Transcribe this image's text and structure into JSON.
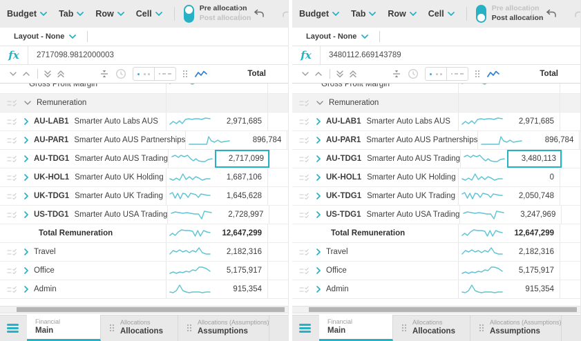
{
  "colors": {
    "accent_teal": "#26b1c5",
    "sparkline": "#5fc4d5",
    "chart_icon_blue": "#2e7fd2",
    "selected_cell_border": "#26b1c5",
    "toolbar_bg": "#ececec",
    "group_row_bg": "#f2f2f2"
  },
  "sparklines": {
    "gross": "1,8 8,5 15,7 22,4 29,6 36,9 43,5 50,7 57,5 63,7",
    "lab": "1,13 6,9 11,12 16,8 20,12 25,6 30,5 35,6 40,5 45,5 50,6 56,4 63,5",
    "par": "1,15 8,15 15,15 22,15 28,15 31,4 35,10 40,12 45,9 50,12 56,11 63,10",
    "tdg": "1,6 6,4 11,7 15,4 20,6 25,4 30,9 34,12 38,9 42,12 47,13 52,13 57,10 63,9",
    "hol": "1,11 6,13 11,10 16,13 21,4 26,12 31,8 36,12 41,8 46,10 51,13 57,11 63,11",
    "uktdg": "1,6 5,4 9,12 13,5 17,13 21,5 25,6 29,11 33,5 37,6 41,7 45,11 49,6 54,7 59,8 63,8",
    "ustdg": "1,7 7,5 13,6 19,7 25,6 31,7 37,8 43,8 48,15 52,4 57,5 63,6",
    "total": "1,12 5,9 9,12 14,7 19,4 25,5 31,5 36,6 40,13 44,5 48,13 53,5 58,7 63,8",
    "travel": "1,12 6,7 11,9 16,6 21,9 26,7 31,10 36,7 41,9 46,3 51,10 57,12 63,12",
    "office": "1,13 6,11 11,13 16,11 21,12 26,10 31,11 36,8 41,9 46,4 51,4 57,6 63,10",
    "admin": "1,13 6,14 11,11 16,3 21,11 26,13 31,14 36,13 41,13 46,13 51,14 57,13 63,13"
  },
  "panels": [
    {
      "toolbar": {
        "menus": [
          "Budget",
          "Tab",
          "Row",
          "Cell"
        ],
        "toggle": {
          "options": [
            "Pre allocation",
            "Post allocation"
          ],
          "active": 0
        }
      },
      "layout_bar": {
        "label": "Layout - None"
      },
      "formula": {
        "icon": "fx",
        "value": "2717098.9812000003"
      },
      "grid_header": {
        "total_label": "Total"
      },
      "rows": [
        {
          "type": "clipped",
          "label": "Gross Profit Margin",
          "spark": "gross",
          "value": ""
        },
        {
          "type": "group",
          "label": "Remuneration"
        },
        {
          "type": "leaf",
          "code": "AU-LAB1",
          "name": "Smarter Auto Labs AUS",
          "spark": "lab",
          "value": "2,971,685"
        },
        {
          "type": "leaf",
          "code": "AU-PAR1",
          "name": "Smarter Auto AUS Partnerships",
          "spark": "par",
          "value": "896,784"
        },
        {
          "type": "leaf",
          "code": "AU-TDG1",
          "name": "Smarter Auto AUS Trading",
          "spark": "tdg",
          "value": "2,717,099",
          "selected": true
        },
        {
          "type": "leaf",
          "code": "UK-HOL1",
          "name": "Smarter Auto UK Holding",
          "spark": "hol",
          "value": "1,687,106"
        },
        {
          "type": "leaf",
          "code": "UK-TDG1",
          "name": "Smarter Auto UK Trading",
          "spark": "uktdg",
          "value": "1,645,628"
        },
        {
          "type": "leaf",
          "code": "US-TDG1",
          "name": "Smarter Auto USA Trading",
          "spark": "ustdg",
          "value": "2,728,997"
        },
        {
          "type": "total",
          "label": "Total Remuneration",
          "spark": "total",
          "value": "12,647,299"
        },
        {
          "type": "parent",
          "label": "Travel",
          "spark": "travel",
          "value": "2,182,316"
        },
        {
          "type": "parent",
          "label": "Office",
          "spark": "office",
          "value": "5,175,917"
        },
        {
          "type": "parent",
          "label": "Admin",
          "spark": "admin",
          "value": "915,354"
        }
      ],
      "tabs": [
        {
          "caption": "Financial",
          "label": "Main",
          "active": true
        },
        {
          "caption": "Allocations",
          "label": "Allocations",
          "active": false
        },
        {
          "caption": "Allocations (Assumptions)",
          "label": "Assumptions",
          "active": false
        }
      ]
    },
    {
      "toolbar": {
        "menus": [
          "Budget",
          "Tab",
          "Row",
          "Cell"
        ],
        "toggle": {
          "options": [
            "Pre allocation",
            "Post allocation"
          ],
          "active": 1
        }
      },
      "layout_bar": {
        "label": "Layout - None"
      },
      "formula": {
        "icon": "fx",
        "value": "3480112.669143789"
      },
      "grid_header": {
        "total_label": "Total"
      },
      "rows": [
        {
          "type": "clipped",
          "label": "Gross Profit Margin",
          "spark": "gross",
          "value": ""
        },
        {
          "type": "group",
          "label": "Remuneration"
        },
        {
          "type": "leaf",
          "code": "AU-LAB1",
          "name": "Smarter Auto Labs AUS",
          "spark": "lab",
          "value": "2,971,685"
        },
        {
          "type": "leaf",
          "code": "AU-PAR1",
          "name": "Smarter Auto AUS Partnerships",
          "spark": "par",
          "value": "896,784"
        },
        {
          "type": "leaf",
          "code": "AU-TDG1",
          "name": "Smarter Auto AUS Trading",
          "spark": "tdg",
          "value": "3,480,113",
          "selected": true
        },
        {
          "type": "leaf",
          "code": "UK-HOL1",
          "name": "Smarter Auto UK Holding",
          "spark": "hol",
          "value": "0"
        },
        {
          "type": "leaf",
          "code": "UK-TDG1",
          "name": "Smarter Auto UK Trading",
          "spark": "uktdg",
          "value": "2,050,748"
        },
        {
          "type": "leaf",
          "code": "US-TDG1",
          "name": "Smarter Auto USA Trading",
          "spark": "ustdg",
          "value": "3,247,969"
        },
        {
          "type": "total",
          "label": "Total Remuneration",
          "spark": "total",
          "value": "12,647,299"
        },
        {
          "type": "parent",
          "label": "Travel",
          "spark": "travel",
          "value": "2,182,316"
        },
        {
          "type": "parent",
          "label": "Office",
          "spark": "office",
          "value": "5,175,917"
        },
        {
          "type": "parent",
          "label": "Admin",
          "spark": "admin",
          "value": "915,354"
        }
      ],
      "tabs": [
        {
          "caption": "Financial",
          "label": "Main",
          "active": true
        },
        {
          "caption": "Allocations",
          "label": "Allocations",
          "active": false
        },
        {
          "caption": "Allocations (Assumptions)",
          "label": "Assumptions",
          "active": false
        }
      ]
    }
  ]
}
